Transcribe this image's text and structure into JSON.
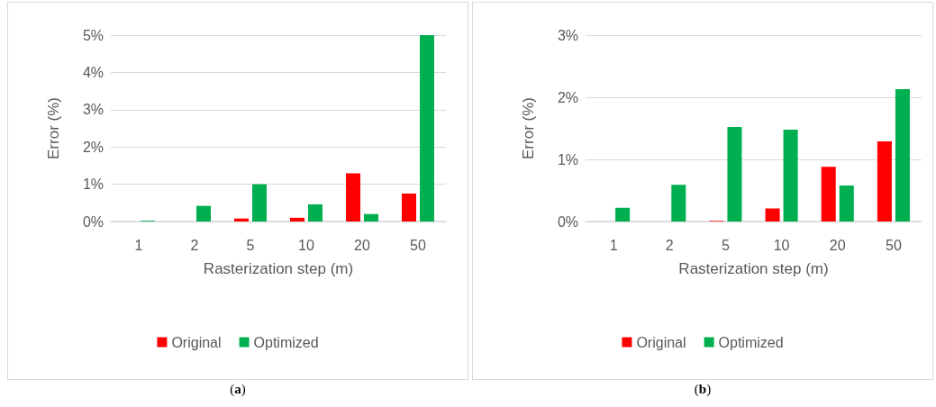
{
  "chart_data": [
    {
      "type": "bar",
      "categories": [
        "1",
        "2",
        "5",
        "10",
        "20",
        "50"
      ],
      "xlabel": "Rasterization step (m)",
      "ylabel": "Error (%)",
      "series": [
        {
          "name": "Original",
          "color": "#ff0000",
          "values": [
            0,
            0,
            0.08,
            0.1,
            1.29,
            0.75
          ]
        },
        {
          "name": "Optimized",
          "color": "#00b050",
          "values": [
            0.02,
            0.42,
            1.0,
            0.46,
            0.2,
            5.0
          ]
        }
      ],
      "ylim": [
        0,
        5
      ],
      "yticks": [
        {
          "value": 0,
          "label": "0%"
        },
        {
          "value": 1,
          "label": "1%"
        },
        {
          "value": 2,
          "label": "2%"
        },
        {
          "value": 3,
          "label": "3%"
        },
        {
          "value": 4,
          "label": "4%"
        },
        {
          "value": 5,
          "label": "5%"
        }
      ],
      "grid": "y",
      "legend": "bottom",
      "annotations": [
        "(a)"
      ]
    },
    {
      "type": "bar",
      "categories": [
        "1",
        "2",
        "5",
        "10",
        "20",
        "50"
      ],
      "xlabel": "Rasterization step (m)",
      "ylabel": "Error (%)",
      "series": [
        {
          "name": "Original",
          "color": "#ff0000",
          "values": [
            0,
            0,
            0.01,
            0.21,
            0.88,
            1.29
          ]
        },
        {
          "name": "Optimized",
          "color": "#00b050",
          "values": [
            0.22,
            0.59,
            1.52,
            1.48,
            0.58,
            2.13
          ]
        }
      ],
      "ylim": [
        0,
        3
      ],
      "yticks": [
        {
          "value": 0,
          "label": "0%"
        },
        {
          "value": 1,
          "label": "1%"
        },
        {
          "value": 2,
          "label": "2%"
        },
        {
          "value": 3,
          "label": "3%"
        }
      ],
      "grid": "y",
      "legend": "bottom",
      "annotations": [
        "(b)"
      ]
    }
  ]
}
